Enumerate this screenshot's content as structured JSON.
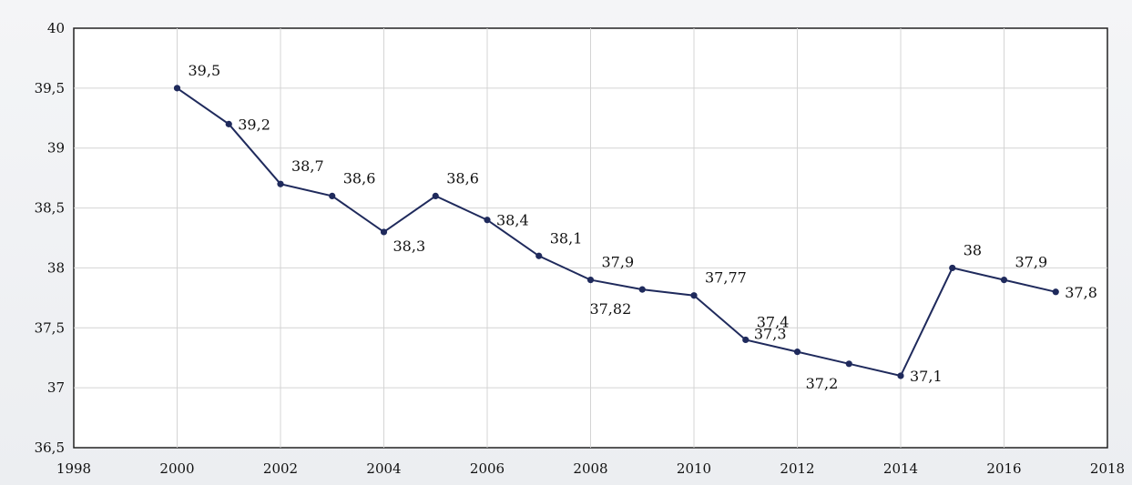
{
  "chart_data": {
    "type": "line",
    "title": "",
    "xlabel": "",
    "ylabel": "",
    "xlim": [
      1998,
      2018
    ],
    "ylim": [
      36.5,
      40
    ],
    "x_ticks": [
      "1998",
      "2000",
      "2002",
      "2004",
      "2006",
      "2008",
      "2010",
      "2012",
      "2014",
      "2016",
      "2018"
    ],
    "y_ticks": [
      "36,5",
      "37",
      "37,5",
      "38",
      "38,5",
      "39",
      "39,5",
      "40"
    ],
    "grid": true,
    "legend": "none",
    "series": [
      {
        "color": "#1f2a5c",
        "x": [
          2000,
          2001,
          2002,
          2003,
          2004,
          2005,
          2006,
          2007,
          2008,
          2009,
          2010,
          2011,
          2012,
          2013,
          2014,
          2015,
          2016,
          2017
        ],
        "values": [
          39.5,
          39.2,
          38.7,
          38.6,
          38.3,
          38.6,
          38.4,
          38.1,
          37.9,
          37.82,
          37.77,
          37.4,
          37.3,
          37.2,
          37.1,
          38.0,
          37.9,
          37.8
        ],
        "labels": [
          "39,5",
          "39,2",
          "38,7",
          "38,6",
          "38,3",
          "38,6",
          "38,4",
          "38,1",
          "37,9",
          "37,82",
          "37,77",
          "37,4",
          "37,3",
          "37,2",
          "37,1",
          "38",
          "37,9",
          "37,8"
        ],
        "label_positions": [
          "above-right",
          "right",
          "above-right",
          "above-right",
          "below-right",
          "above-right",
          "right",
          "above-right",
          "above-right",
          "below-left",
          "above-right",
          "above-right",
          "above-left",
          "below-left",
          "right",
          "above-right",
          "above-right",
          "right"
        ]
      }
    ]
  }
}
